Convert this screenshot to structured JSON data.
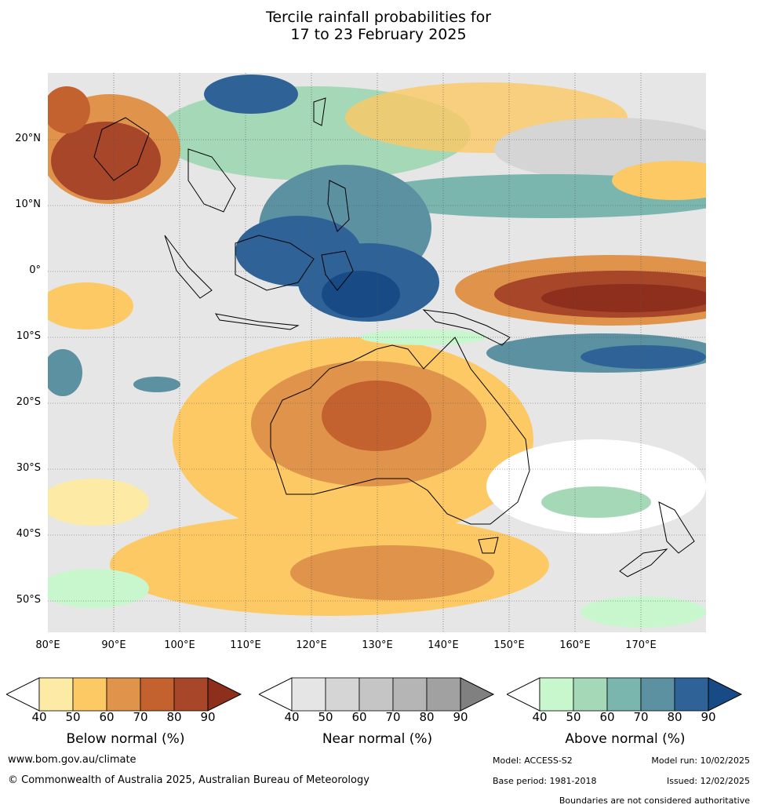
{
  "title": {
    "line1": "Tercile rainfall probabilities for",
    "line2": "17 to 23 February 2025"
  },
  "map": {
    "lat_labels": [
      "20°N",
      "10°N",
      "0°",
      "10°S",
      "20°S",
      "30°S",
      "40°S",
      "50°S"
    ],
    "lon_labels": [
      "80°E",
      "90°E",
      "100°E",
      "110°E",
      "120°E",
      "130°E",
      "140°E",
      "150°E",
      "160°E",
      "170°E"
    ]
  },
  "legends": [
    {
      "title": "Below normal (%)",
      "colors": [
        "#fdeaa5",
        "#fcc965",
        "#e0944b",
        "#c4622f",
        "#a8462a",
        "#8e2e1d"
      ]
    },
    {
      "title": "Near normal (%)",
      "colors": [
        "#e5e5e5",
        "#d5d5d5",
        "#c5c5c5",
        "#b5b5b5",
        "#a1a1a1",
        "#808080"
      ]
    },
    {
      "title": "Above normal (%)",
      "colors": [
        "#c8f7cd",
        "#a4d8b6",
        "#7ab6ad",
        "#5c91a2",
        "#2f6398",
        "#184a86"
      ]
    }
  ],
  "legend_ticks": [
    "40",
    "50",
    "60",
    "70",
    "80",
    "90"
  ],
  "footer": {
    "website": "www.bom.gov.au/climate",
    "copyright": "© Commonwealth of Australia 2025, Australian Bureau of Meteorology",
    "model": "Model: ACCESS-S2",
    "model_run": "Model run: 10/02/2025",
    "base_period": "Base period: 1981-2018",
    "issued": "Issued: 12/02/2025",
    "disclaimer": "Boundaries are not considered authoritative"
  }
}
